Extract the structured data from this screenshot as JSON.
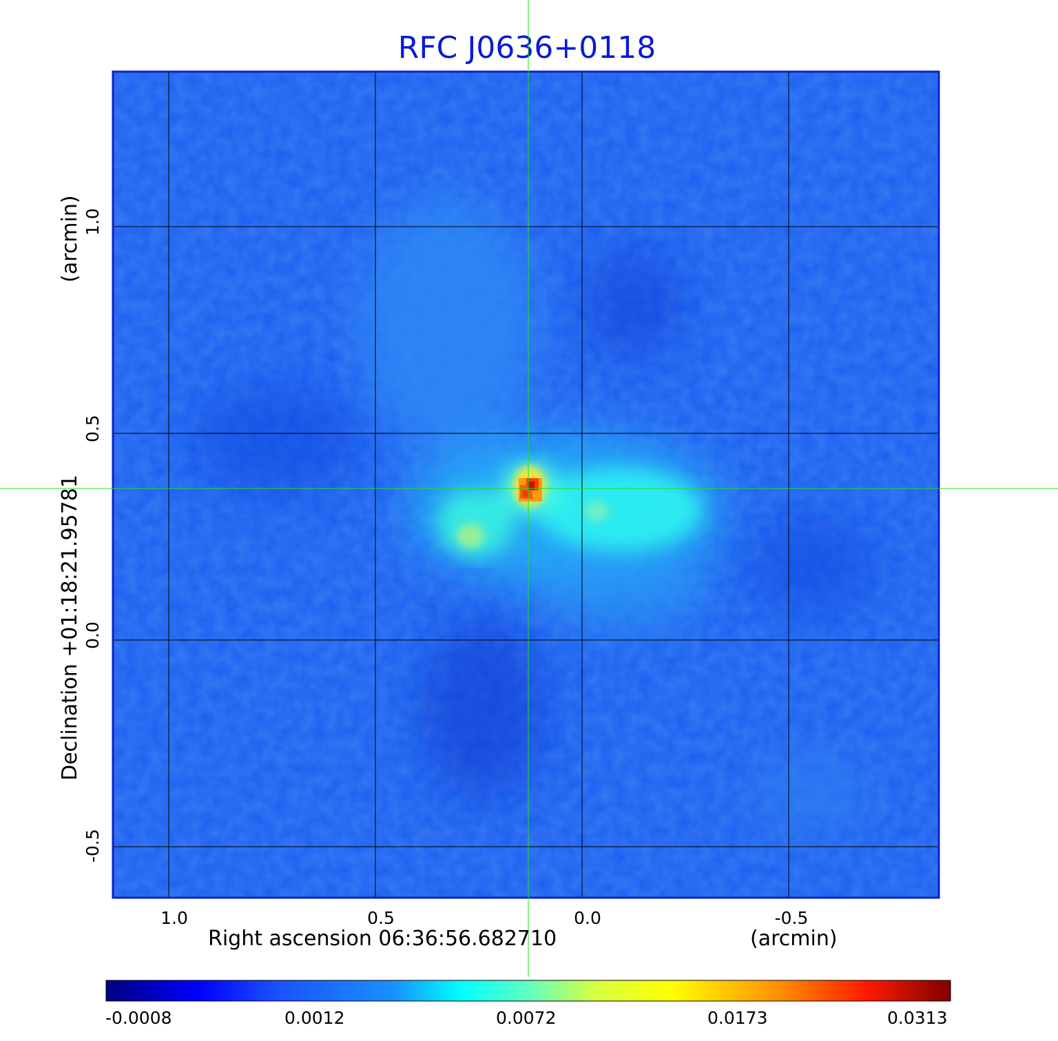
{
  "title": "RFC J0636+0118",
  "x_axis": {
    "label": "Right ascension  06:36:56.682710",
    "unit": "(arcmin)",
    "ticks": [
      "1.0",
      "0.5",
      "0.0",
      "-0.5"
    ]
  },
  "y_axis": {
    "label": "Declination  +01:18:21.95781",
    "unit": "(arcmin)",
    "ticks": [
      "1.0",
      "0.5",
      "0.0",
      "-0.5"
    ]
  },
  "colorbar": {
    "colormap": "jet",
    "ticks": [
      "-0.0008",
      "0.0012",
      "0.0072",
      "0.0173",
      "0.0313"
    ]
  },
  "colors": {
    "title": "#0a1ad6",
    "crosshair": "#22dd22",
    "grid": "#000000"
  }
}
